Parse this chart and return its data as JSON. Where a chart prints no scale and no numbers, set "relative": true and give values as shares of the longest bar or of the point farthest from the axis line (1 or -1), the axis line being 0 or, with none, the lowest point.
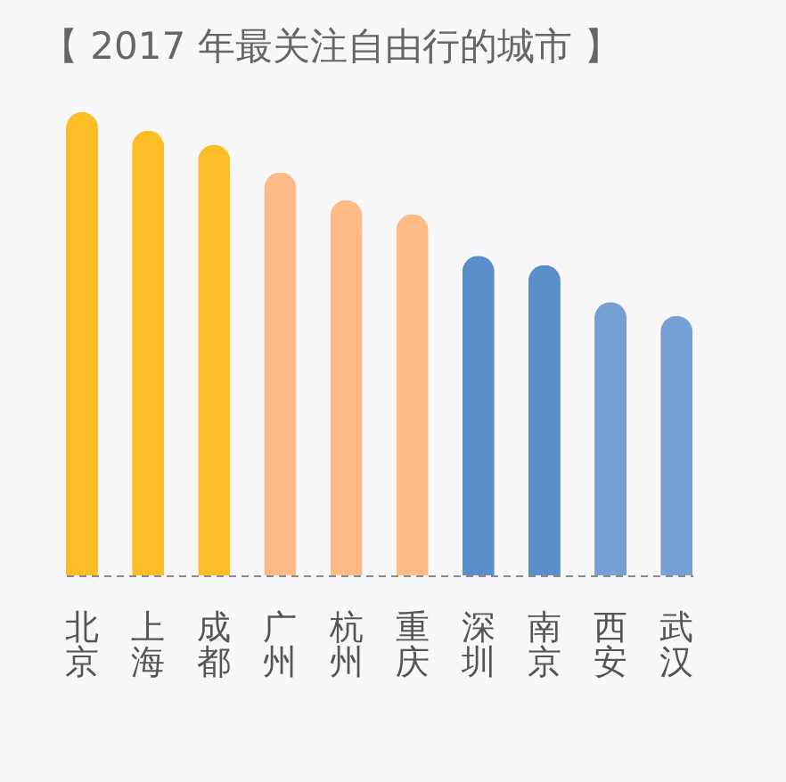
{
  "chart_data": {
    "type": "bar",
    "title": "【 2017 年最关注自由行的城市 】",
    "categories": [
      "北京",
      "上海",
      "成都",
      "广州",
      "杭州",
      "重庆",
      "深圳",
      "南京",
      "西安",
      "武汉"
    ],
    "values": [
      1,
      0.96,
      0.93,
      0.87,
      0.81,
      0.78,
      0.69,
      0.67,
      0.59,
      0.56
    ],
    "colors": [
      "#fbbe26",
      "#fbbe26",
      "#fbbe26",
      "#fdbb88",
      "#fdbb88",
      "#fdbb88",
      "#5b8fca",
      "#5b8fca",
      "#769fd3",
      "#769fd3"
    ],
    "relative": true
  }
}
